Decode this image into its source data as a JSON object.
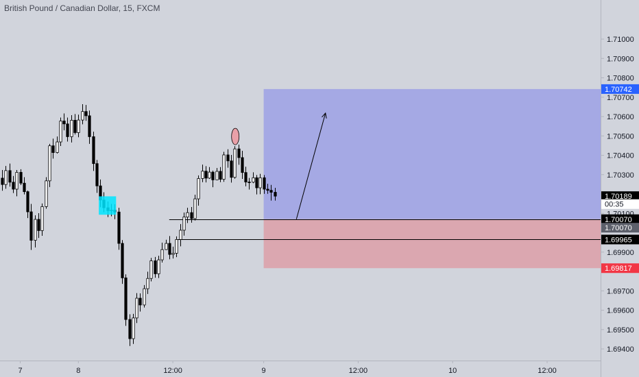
{
  "chart_data": {
    "type": "candlestick",
    "title": "British Pound / Canadian Dollar, 15, FXCM",
    "colors": {
      "background": "#d1d4dc",
      "candle": "#000000",
      "axis_text": "#131722",
      "profit_zone": "#a5a9e4",
      "loss_zone": "#dba7b0",
      "marker_fill": "#e8a0a8",
      "highlight_box": "#00e5ff"
    },
    "y_axis": {
      "ylim": [
        1.6934,
        1.7117
      ],
      "ticks": [
        "1.71000",
        "1.70900",
        "1.70800",
        "1.70700",
        "1.70600",
        "1.70500",
        "1.70400",
        "1.70300",
        "1.70100",
        "1.69900",
        "1.69700",
        "1.69600",
        "1.69500",
        "1.69400"
      ]
    },
    "x_axis": {
      "labels": [
        {
          "label": "7",
          "bar": 5
        },
        {
          "label": "8",
          "bar": 21
        },
        {
          "label": "12:00",
          "bar": 47
        },
        {
          "label": "9",
          "bar": 72
        },
        {
          "label": "12:00",
          "bar": 98
        },
        {
          "label": "10",
          "bar": 124
        },
        {
          "label": "12:00",
          "bar": 150
        }
      ],
      "total_bars": 166
    },
    "price_tags": [
      {
        "label": "1.70742",
        "value": 1.70742,
        "bg": "#2962ff",
        "fg": "#ffffff"
      },
      {
        "label": "1.70189",
        "value": 1.70189,
        "bg": "#000000",
        "fg": "#ffffff"
      },
      {
        "label": "00:35",
        "value": 1.70148,
        "bg": "#ffffff",
        "fg": "#131722"
      },
      {
        "label": "1.70070",
        "value": 1.7007,
        "bg": "#000000",
        "fg": "#ffffff"
      },
      {
        "label": "1.70070",
        "value": 1.70026,
        "bg": "#5d606b",
        "fg": "#ffffff"
      },
      {
        "label": "1.69965",
        "value": 1.69965,
        "bg": "#000000",
        "fg": "#ffffff"
      },
      {
        "label": "1.69817",
        "value": 1.69817,
        "bg": "#f23645",
        "fg": "#ffffff"
      }
    ],
    "long_position": {
      "entry": 1.7007,
      "target": 1.70742,
      "stop": 1.69817,
      "start_bar": 72
    },
    "horizontal_lines": [
      {
        "value": 1.7007,
        "from_bar": 46
      },
      {
        "value": 1.69965,
        "from_bar": 48
      }
    ],
    "arrow": {
      "from_bar": 81,
      "from_value": 1.7007,
      "to_bar": 89,
      "to_value": 1.70618
    },
    "ellipse": {
      "bar": 64,
      "value": 1.70497
    },
    "highlight_bars": {
      "from_bar": 27,
      "to_bar": 31,
      "high": 1.70188,
      "low": 1.70093
    },
    "candles": [
      [
        1.70282,
        1.70249,
        1.70324,
        1.70217
      ],
      [
        1.70249,
        1.70321,
        1.70345,
        1.70227
      ],
      [
        1.70321,
        1.70261,
        1.70357,
        1.70238
      ],
      [
        1.70261,
        1.70225,
        1.70293,
        1.70205
      ],
      [
        1.70225,
        1.70312,
        1.70324,
        1.70188
      ],
      [
        1.70312,
        1.70256,
        1.70328,
        1.70246
      ],
      [
        1.70256,
        1.70212,
        1.70287,
        1.70198
      ],
      [
        1.70212,
        1.70108,
        1.70218,
        1.70076
      ],
      [
        1.70108,
        1.69961,
        1.70149,
        1.69911
      ],
      [
        1.69961,
        1.70069,
        1.7009,
        1.69924
      ],
      [
        1.70069,
        1.70011,
        1.70101,
        1.69973
      ],
      [
        1.70011,
        1.70135,
        1.70151,
        1.69984
      ],
      [
        1.70135,
        1.70268,
        1.70287,
        1.70124
      ],
      [
        1.70268,
        1.70449,
        1.70459,
        1.70236
      ],
      [
        1.70449,
        1.70414,
        1.70486,
        1.70383
      ],
      [
        1.70414,
        1.70469,
        1.70497,
        1.70409
      ],
      [
        1.70469,
        1.70577,
        1.70595,
        1.70448
      ],
      [
        1.70577,
        1.70562,
        1.70616,
        1.70529
      ],
      [
        1.70562,
        1.70496,
        1.70595,
        1.70471
      ],
      [
        1.70496,
        1.70581,
        1.70607,
        1.70466
      ],
      [
        1.70581,
        1.70517,
        1.70613,
        1.70507
      ],
      [
        1.70517,
        1.70582,
        1.7061,
        1.70493
      ],
      [
        1.70582,
        1.70626,
        1.70664,
        1.7056
      ],
      [
        1.70626,
        1.70604,
        1.7066,
        1.70578
      ],
      [
        1.70604,
        1.70496,
        1.70631,
        1.70459
      ],
      [
        1.70496,
        1.70357,
        1.70522,
        1.70319
      ],
      [
        1.70357,
        1.70242,
        1.70376,
        1.70206
      ],
      [
        1.70242,
        1.70169,
        1.70275,
        1.70132
      ],
      [
        1.70169,
        1.70129,
        1.70209,
        1.70106
      ],
      [
        1.70129,
        1.70114,
        1.70161,
        1.70081
      ],
      [
        1.70114,
        1.70117,
        1.70149,
        1.70085
      ],
      [
        1.70117,
        1.70107,
        1.70147,
        1.7007
      ],
      [
        1.70107,
        1.69945,
        1.70129,
        1.69912
      ],
      [
        1.69945,
        1.69767,
        1.69962,
        1.69736
      ],
      [
        1.69767,
        1.69552,
        1.69785,
        1.69519
      ],
      [
        1.69552,
        1.69453,
        1.69579,
        1.69415
      ],
      [
        1.69453,
        1.6956,
        1.69581,
        1.69426
      ],
      [
        1.6956,
        1.69662,
        1.69688,
        1.69534
      ],
      [
        1.69662,
        1.69627,
        1.69687,
        1.69593
      ],
      [
        1.69627,
        1.69711,
        1.6973,
        1.69614
      ],
      [
        1.69711,
        1.69764,
        1.69799,
        1.69684
      ],
      [
        1.69764,
        1.69855,
        1.6987,
        1.69749
      ],
      [
        1.69855,
        1.69788,
        1.69875,
        1.69768
      ],
      [
        1.69788,
        1.6986,
        1.69881,
        1.69766
      ],
      [
        1.6986,
        1.69913,
        1.69949,
        1.69846
      ],
      [
        1.69913,
        1.69945,
        1.69964,
        1.69911
      ],
      [
        1.69945,
        1.69888,
        1.69983,
        1.69863
      ],
      [
        1.69888,
        1.69894,
        1.69928,
        1.69867
      ],
      [
        1.69894,
        1.69965,
        1.69981,
        1.69874
      ],
      [
        1.69965,
        1.70013,
        1.70045,
        1.6993
      ],
      [
        1.70013,
        1.70081,
        1.70104,
        1.69985
      ],
      [
        1.70081,
        1.70104,
        1.70129,
        1.7005
      ],
      [
        1.70104,
        1.70073,
        1.70133,
        1.70052
      ],
      [
        1.70073,
        1.70175,
        1.70196,
        1.70063
      ],
      [
        1.70175,
        1.7028,
        1.70296,
        1.7014
      ],
      [
        1.7028,
        1.70318,
        1.70352,
        1.70261
      ],
      [
        1.70318,
        1.70282,
        1.70344,
        1.7026
      ],
      [
        1.70282,
        1.70313,
        1.70339,
        1.70278
      ],
      [
        1.70313,
        1.70273,
        1.70321,
        1.70235
      ],
      [
        1.70273,
        1.70317,
        1.70334,
        1.70294
      ],
      [
        1.70317,
        1.70276,
        1.70339,
        1.70261
      ],
      [
        1.70276,
        1.70402,
        1.70418,
        1.70263
      ],
      [
        1.70402,
        1.70371,
        1.70431,
        1.70336
      ],
      [
        1.70371,
        1.70286,
        1.70402,
        1.70259
      ],
      [
        1.70286,
        1.70433,
        1.70447,
        1.70279
      ],
      [
        1.70433,
        1.70388,
        1.70455,
        1.70351
      ],
      [
        1.70388,
        1.70311,
        1.70423,
        1.70278
      ],
      [
        1.70311,
        1.70262,
        1.70341,
        1.7024
      ],
      [
        1.70262,
        1.70261,
        1.70283,
        1.70223
      ],
      [
        1.70261,
        1.70284,
        1.70312,
        1.70256
      ],
      [
        1.70284,
        1.70232,
        1.70298,
        1.70198
      ],
      [
        1.70232,
        1.70284,
        1.70304,
        1.70199
      ],
      [
        1.70284,
        1.70225,
        1.70298,
        1.70201
      ],
      [
        1.70225,
        1.70219,
        1.70253,
        1.70201
      ],
      [
        1.70219,
        1.70209,
        1.70247,
        1.70166
      ],
      [
        1.70209,
        1.70189,
        1.70232,
        1.70166
      ]
    ]
  }
}
